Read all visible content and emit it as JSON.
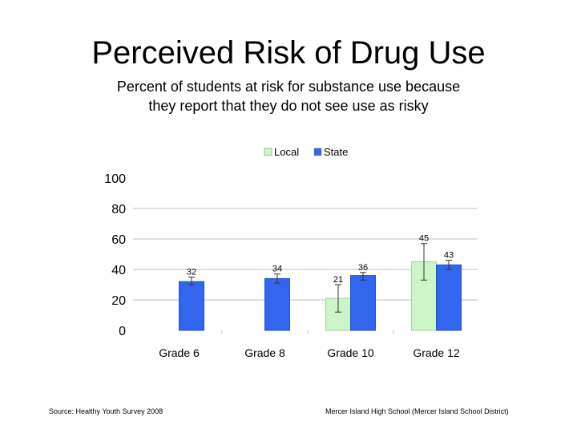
{
  "slide": {
    "title": "Perceived Risk of Drug Use",
    "subtitle_lines": [
      "Percent of students at risk for substance use because",
      "they report that they do not see use as risky"
    ],
    "source": "Source: Healthy Youth Survey 2008",
    "credit": "Mercer Island High School (Mercer Island School District)"
  },
  "chart_data": {
    "type": "bar",
    "categories": [
      "Grade 6",
      "Grade 8",
      "Grade 10",
      "Grade 12"
    ],
    "series": [
      {
        "name": "Local",
        "color": "#ccf5c8",
        "values": [
          null,
          null,
          21,
          45
        ],
        "error_low": [
          null,
          null,
          12,
          33
        ],
        "error_high": [
          null,
          null,
          30,
          57
        ]
      },
      {
        "name": "State",
        "color": "#3366ee",
        "values": [
          32,
          34,
          36,
          43
        ],
        "error_low": [
          30,
          31,
          33,
          40
        ],
        "error_high": [
          35,
          37,
          38,
          46
        ]
      }
    ],
    "yticks": [
      0,
      20,
      40,
      60,
      80,
      100
    ],
    "ylim": [
      0,
      100
    ],
    "grid": true,
    "legend_position": "top"
  }
}
